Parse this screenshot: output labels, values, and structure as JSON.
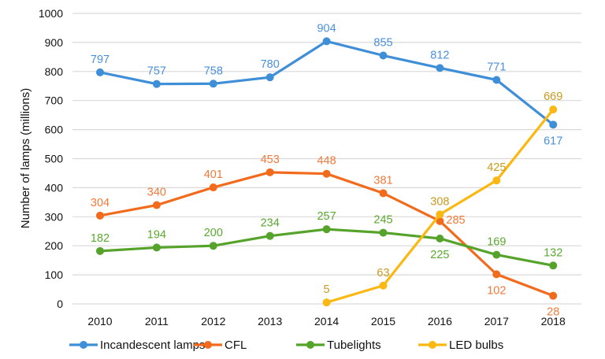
{
  "chart_data": {
    "type": "line",
    "title": "",
    "xlabel": "",
    "ylabel": "Number of lamps (millions)",
    "ylim": [
      0,
      1000
    ],
    "yticks": [
      0,
      100,
      200,
      300,
      400,
      500,
      600,
      700,
      800,
      900,
      1000
    ],
    "grid": true,
    "legend_position": "bottom",
    "categories": [
      "2010",
      "2011",
      "2012",
      "2013",
      "2014",
      "2015",
      "2016",
      "2017",
      "2018"
    ],
    "series": [
      {
        "name": "Incandescent lamps",
        "color": "#3f8fd8",
        "label_color": "#4a90d9",
        "values": [
          797,
          757,
          758,
          780,
          904,
          855,
          812,
          771,
          617
        ]
      },
      {
        "name": "CFL",
        "color": "#f26b1d",
        "label_color": "#f27a3a",
        "values": [
          304,
          340,
          401,
          453,
          448,
          381,
          285,
          102,
          28
        ]
      },
      {
        "name": "Tubelights",
        "color": "#55a32a",
        "label_color": "#5aa82f",
        "values": [
          182,
          194,
          200,
          234,
          257,
          245,
          225,
          169,
          132
        ]
      },
      {
        "name": "LED bulbs",
        "color": "#fbb812",
        "label_color": "#c99a1c",
        "values": [
          null,
          null,
          null,
          null,
          5,
          63,
          308,
          425,
          669
        ]
      }
    ]
  }
}
